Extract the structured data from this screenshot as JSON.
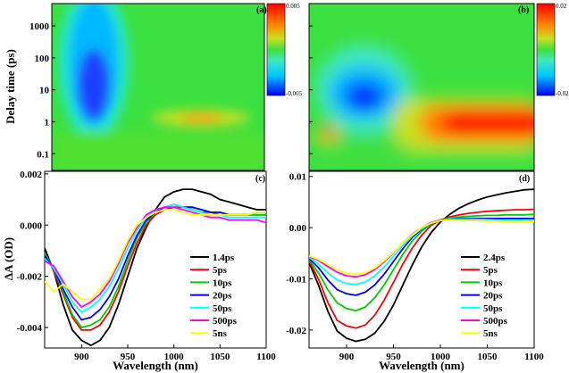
{
  "chart_data": [
    {
      "panel": "a",
      "type": "heatmap",
      "label": "(a)",
      "ylabel": "Delay time (ps)",
      "xlim": [
        860,
        1100
      ],
      "yscale": "log",
      "ylim": [
        0.03,
        5000
      ],
      "yticks": [
        "0.1",
        "1",
        "10",
        "100",
        "1000"
      ],
      "colorbar": {
        "min": -0.005,
        "max": 0.005,
        "max_label": "0.005",
        "min_label": "-0.005"
      },
      "features": [
        {
          "kind": "negative-band",
          "x_center": 910,
          "x_halfwidth": 30,
          "t_from": 0.6,
          "t_to": 5000,
          "peak_value": -0.0045
        },
        {
          "kind": "positive-band",
          "x_center": 1025,
          "x_halfwidth": 30,
          "t_center": 0.8,
          "peak_value": 0.0025
        }
      ]
    },
    {
      "panel": "b",
      "type": "heatmap",
      "label": "(b)",
      "xlim": [
        860,
        1100
      ],
      "yscale": "log",
      "ylim": [
        0.03,
        5000
      ],
      "yticks": [
        "0.1",
        "1",
        "10",
        "100",
        "1000"
      ],
      "colorbar": {
        "min": -0.02,
        "max": 0.02,
        "max_label": "0.02",
        "min_label": "-0.02"
      },
      "features": [
        {
          "kind": "negative-band",
          "x_center": 915,
          "x_halfwidth": 35,
          "t_center": 3,
          "peak_value": -0.02
        },
        {
          "kind": "positive-band",
          "x_from": 990,
          "x_to": 1100,
          "t_center": 0.5,
          "peak_value": 0.02
        },
        {
          "kind": "positive-spot",
          "x_center": 875,
          "t_center": 0.4,
          "peak_value": 0.008
        }
      ]
    },
    {
      "panel": "c",
      "type": "line",
      "label": "(c)",
      "xlabel": "Wavelength (nm)",
      "ylabel": "ΔA (OD)",
      "xlim": [
        860,
        1100
      ],
      "ylim": [
        -0.0048,
        0.0021
      ],
      "xticks": [
        "900",
        "950",
        "1000",
        "1050",
        "1100"
      ],
      "yticks": [
        "-0.004",
        "-0.002",
        "0.000",
        "0.002"
      ],
      "x": [
        860,
        870,
        880,
        890,
        900,
        910,
        920,
        930,
        940,
        950,
        960,
        970,
        980,
        990,
        1000,
        1010,
        1020,
        1030,
        1040,
        1050,
        1060,
        1070,
        1080,
        1090,
        1100
      ],
      "series": [
        {
          "name": "1.4ps",
          "color": "#000000",
          "values": [
            -0.0009,
            -0.0018,
            -0.0031,
            -0.0041,
            -0.0045,
            -0.0047,
            -0.0045,
            -0.004,
            -0.0031,
            -0.002,
            -0.0009,
            -0.0001,
            0.0006,
            0.0011,
            0.0013,
            0.0014,
            0.0014,
            0.0013,
            0.0012,
            0.001,
            0.0009,
            0.0008,
            0.0007,
            0.0006,
            0.0006
          ]
        },
        {
          "name": "5ps",
          "color": "#ff0000",
          "values": [
            -0.0011,
            -0.0018,
            -0.0027,
            -0.0036,
            -0.0041,
            -0.0041,
            -0.0039,
            -0.0034,
            -0.0026,
            -0.0016,
            -0.0007,
            0.0,
            0.0004,
            0.0006,
            0.0007,
            0.0007,
            0.0006,
            0.0005,
            0.0005,
            0.0004,
            0.0004,
            0.0004,
            0.0004,
            0.0004,
            0.0004
          ]
        },
        {
          "name": "10ps",
          "color": "#00cc00",
          "values": [
            -0.0011,
            -0.0017,
            -0.0026,
            -0.0035,
            -0.004,
            -0.0039,
            -0.0037,
            -0.0032,
            -0.0024,
            -0.0014,
            -0.0005,
            0.0001,
            0.0005,
            0.0007,
            0.0008,
            0.0007,
            0.0007,
            0.0006,
            0.0005,
            0.0005,
            0.0004,
            0.0004,
            0.0004,
            0.0004,
            0.0004
          ]
        },
        {
          "name": "20ps",
          "color": "#0000ff",
          "values": [
            -0.0012,
            -0.0017,
            -0.0025,
            -0.0032,
            -0.0037,
            -0.0036,
            -0.0033,
            -0.0028,
            -0.0021,
            -0.0012,
            -0.0004,
            0.0002,
            0.0005,
            0.0007,
            0.0008,
            0.0007,
            0.0007,
            0.0006,
            0.0005,
            0.0005,
            0.0004,
            0.0004,
            0.0004,
            0.0005,
            0.0005
          ]
        },
        {
          "name": "50ps",
          "color": "#00ffff",
          "values": [
            -0.0013,
            -0.0017,
            -0.0023,
            -0.003,
            -0.0034,
            -0.0032,
            -0.0029,
            -0.0024,
            -0.0017,
            -0.0009,
            -0.0002,
            0.0003,
            0.0006,
            0.0007,
            0.0008,
            0.0007,
            0.0006,
            0.0005,
            0.0004,
            0.0004,
            0.0003,
            0.0003,
            0.0003,
            0.0003,
            0.0003
          ]
        },
        {
          "name": "500ps",
          "color": "#ff00ff",
          "values": [
            -0.0014,
            -0.0016,
            -0.0022,
            -0.0028,
            -0.0032,
            -0.003,
            -0.0027,
            -0.0022,
            -0.0015,
            -0.0007,
            -0.0001,
            0.0004,
            0.0006,
            0.0007,
            0.0007,
            0.0006,
            0.0005,
            0.0004,
            0.0003,
            0.0003,
            0.0002,
            0.0002,
            0.0002,
            0.0002,
            0.0001
          ]
        },
        {
          "name": "5ns",
          "color": "#ffff00",
          "values": [
            -0.0022,
            -0.0026,
            -0.0023,
            -0.0026,
            -0.0029,
            -0.0029,
            -0.0025,
            -0.0021,
            -0.0014,
            -0.0006,
            0.0,
            0.0003,
            0.0005,
            0.0006,
            0.0006,
            0.0005,
            0.0004,
            0.0004,
            0.0004,
            0.0004,
            0.0004,
            0.0004,
            0.0004,
            0.0005,
            0.0005
          ]
        }
      ]
    },
    {
      "panel": "d",
      "type": "line",
      "label": "(d)",
      "xlabel": "Wavelength (nm)",
      "xlim": [
        860,
        1100
      ],
      "ylim": [
        -0.0235,
        0.011
      ],
      "xticks": [
        "900",
        "950",
        "1000",
        "1050",
        "1100"
      ],
      "yticks": [
        "-0.02",
        "-0.01",
        "0.00",
        "0.01"
      ],
      "x": [
        860,
        870,
        880,
        890,
        900,
        910,
        920,
        930,
        940,
        950,
        960,
        970,
        980,
        990,
        1000,
        1010,
        1020,
        1030,
        1040,
        1050,
        1060,
        1070,
        1080,
        1090,
        1100
      ],
      "series": [
        {
          "name": "2.4ps",
          "color": "#000000",
          "values": [
            -0.0068,
            -0.0112,
            -0.0163,
            -0.0202,
            -0.0216,
            -0.0222,
            -0.0218,
            -0.0206,
            -0.0183,
            -0.0151,
            -0.0112,
            -0.0073,
            -0.0038,
            -0.001,
            0.0011,
            0.0026,
            0.0038,
            0.0047,
            0.0054,
            0.006,
            0.0064,
            0.0068,
            0.0071,
            0.0074,
            0.0075
          ]
        },
        {
          "name": "5ps",
          "color": "#ff0000",
          "values": [
            -0.0065,
            -0.01,
            -0.0146,
            -0.0181,
            -0.0192,
            -0.0196,
            -0.019,
            -0.0171,
            -0.0142,
            -0.0107,
            -0.0071,
            -0.004,
            -0.0015,
            0.0004,
            0.0015,
            0.0021,
            0.0025,
            0.0028,
            0.003,
            0.0032,
            0.0033,
            0.0034,
            0.0035,
            0.0035,
            0.0036
          ]
        },
        {
          "name": "10ps",
          "color": "#00cc00",
          "values": [
            -0.0062,
            -0.0088,
            -0.0121,
            -0.0147,
            -0.0158,
            -0.0162,
            -0.0155,
            -0.0137,
            -0.0112,
            -0.0082,
            -0.0052,
            -0.0026,
            -0.0007,
            0.0007,
            0.0015,
            0.0019,
            0.0021,
            0.0022,
            0.0023,
            0.0024,
            0.0024,
            0.0025,
            0.0025,
            0.0025,
            0.0026
          ]
        },
        {
          "name": "20ps",
          "color": "#0000ff",
          "values": [
            -0.006,
            -0.0078,
            -0.0102,
            -0.0121,
            -0.0129,
            -0.0132,
            -0.0126,
            -0.0112,
            -0.0091,
            -0.0066,
            -0.0041,
            -0.0019,
            -0.0003,
            0.0009,
            0.0015,
            0.0017,
            0.0018,
            0.0018,
            0.0018,
            0.0018,
            0.0018,
            0.0018,
            0.0018,
            0.0018,
            0.0018
          ]
        },
        {
          "name": "50ps",
          "color": "#00ffff",
          "values": [
            -0.0058,
            -0.0071,
            -0.0088,
            -0.0102,
            -0.0109,
            -0.0111,
            -0.0106,
            -0.0094,
            -0.0077,
            -0.0056,
            -0.0035,
            -0.0016,
            -0.0002,
            0.0009,
            0.0015,
            0.0017,
            0.0017,
            0.0017,
            0.0016,
            0.0016,
            0.0015,
            0.0015,
            0.0015,
            0.0014,
            0.0014
          ]
        },
        {
          "name": "500ps",
          "color": "#ff00ff",
          "values": [
            -0.0056,
            -0.0064,
            -0.0076,
            -0.0087,
            -0.0094,
            -0.0096,
            -0.0092,
            -0.0082,
            -0.0067,
            -0.0049,
            -0.003,
            -0.0013,
            0.0,
            0.001,
            0.0015,
            0.0016,
            0.0016,
            0.0015,
            0.0014,
            0.0013,
            0.0013,
            0.0012,
            0.0012,
            0.0012,
            0.0012
          ]
        },
        {
          "name": "5ns",
          "color": "#ffff00",
          "values": [
            -0.0055,
            -0.0062,
            -0.0072,
            -0.0082,
            -0.0089,
            -0.0091,
            -0.0088,
            -0.0079,
            -0.0065,
            -0.0048,
            -0.003,
            -0.0014,
            0.0,
            0.0009,
            0.0014,
            0.0015,
            0.0015,
            0.0014,
            0.0014,
            0.0013,
            0.0013,
            0.0012,
            0.0012,
            0.0012,
            0.0012
          ]
        }
      ]
    }
  ],
  "shared": {
    "ylabel_heatmap": "Delay time (ps)",
    "ylabel_line": "ΔA (OD)",
    "xlabel": "Wavelength (nm)"
  }
}
